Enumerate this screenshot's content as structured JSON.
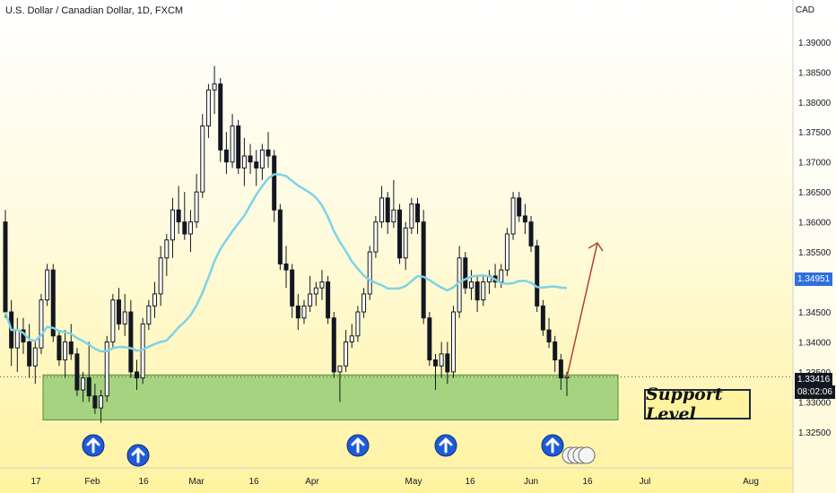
{
  "title": "U.S. Dollar / Canadian Dollar, 1D, FXCM",
  "unit": "CAD",
  "colors": {
    "bg_top": "#ffffff",
    "bg_bottom": "#fff3a0",
    "zone": "#a5d37f",
    "zone_border": "#5b8a3a",
    "ma": "#7ed3e6",
    "candle": "#131722",
    "arrow": "#1e5bd8",
    "ma_tag": "#2f6fe0",
    "price_tag": "#131722"
  },
  "y_ticks": [
    "1.32500",
    "1.33000",
    "1.33500",
    "1.34000",
    "1.34500",
    "1.35000",
    "1.35500",
    "1.36000",
    "1.36500",
    "1.37000",
    "1.37500",
    "1.38000",
    "1.38500",
    "1.39000"
  ],
  "x_ticks": [
    "17",
    "Feb",
    "16",
    "Mar",
    "16",
    "Apr",
    "May",
    "16",
    "Jun",
    "16",
    "Jul",
    "Aug"
  ],
  "ma_tag": "1.34951",
  "price_tag": "1.33416",
  "countdown": "08:02:06",
  "support_label": "Support Level",
  "chart_data": {
    "type": "candlestick",
    "title": "U.S. Dollar / Canadian Dollar, 1D, FXCM",
    "ylabel": "CAD",
    "ylim": [
      1.319,
      1.397
    ],
    "support_zone": [
      1.327,
      1.3345
    ],
    "ma_last": 1.34951,
    "last_price": 1.33416,
    "ohlc": [
      [
        1.36,
        1.362,
        1.344,
        1.345
      ],
      [
        1.345,
        1.347,
        1.336,
        1.339
      ],
      [
        1.339,
        1.344,
        1.335,
        1.342
      ],
      [
        1.342,
        1.344,
        1.338,
        1.34
      ],
      [
        1.34,
        1.343,
        1.334,
        1.336
      ],
      [
        1.336,
        1.34,
        1.333,
        1.339
      ],
      [
        1.339,
        1.348,
        1.338,
        1.347
      ],
      [
        1.347,
        1.353,
        1.346,
        1.352
      ],
      [
        1.352,
        1.353,
        1.34,
        1.341
      ],
      [
        1.341,
        1.342,
        1.336,
        1.337
      ],
      [
        1.337,
        1.342,
        1.334,
        1.34
      ],
      [
        1.34,
        1.343,
        1.337,
        1.338
      ],
      [
        1.338,
        1.339,
        1.331,
        1.332
      ],
      [
        1.332,
        1.335,
        1.33,
        1.334
      ],
      [
        1.334,
        1.34,
        1.33,
        1.331
      ],
      [
        1.331,
        1.333,
        1.328,
        1.329
      ],
      [
        1.329,
        1.332,
        1.3265,
        1.331
      ],
      [
        1.331,
        1.341,
        1.33,
        1.34
      ],
      [
        1.34,
        1.348,
        1.339,
        1.347
      ],
      [
        1.347,
        1.349,
        1.342,
        1.343
      ],
      [
        1.343,
        1.348,
        1.341,
        1.345
      ],
      [
        1.345,
        1.347,
        1.334,
        1.335
      ],
      [
        1.335,
        1.337,
        1.332,
        1.334
      ],
      [
        1.334,
        1.344,
        1.333,
        1.343
      ],
      [
        1.343,
        1.347,
        1.342,
        1.346
      ],
      [
        1.346,
        1.35,
        1.344,
        1.348
      ],
      [
        1.348,
        1.356,
        1.346,
        1.354
      ],
      [
        1.354,
        1.358,
        1.351,
        1.357
      ],
      [
        1.357,
        1.364,
        1.354,
        1.362
      ],
      [
        1.362,
        1.366,
        1.358,
        1.36
      ],
      [
        1.36,
        1.365,
        1.357,
        1.358
      ],
      [
        1.358,
        1.362,
        1.355,
        1.36
      ],
      [
        1.36,
        1.368,
        1.359,
        1.365
      ],
      [
        1.365,
        1.378,
        1.364,
        1.376
      ],
      [
        1.376,
        1.383,
        1.374,
        1.382
      ],
      [
        1.382,
        1.386,
        1.378,
        1.383
      ],
      [
        1.383,
        1.384,
        1.37,
        1.372
      ],
      [
        1.372,
        1.375,
        1.368,
        1.37
      ],
      [
        1.37,
        1.378,
        1.369,
        1.376
      ],
      [
        1.376,
        1.377,
        1.368,
        1.369
      ],
      [
        1.369,
        1.374,
        1.366,
        1.371
      ],
      [
        1.371,
        1.373,
        1.368,
        1.37
      ],
      [
        1.37,
        1.372,
        1.366,
        1.369
      ],
      [
        1.369,
        1.373,
        1.367,
        1.372
      ],
      [
        1.372,
        1.375,
        1.369,
        1.371
      ],
      [
        1.371,
        1.372,
        1.36,
        1.362
      ],
      [
        1.362,
        1.363,
        1.352,
        1.353
      ],
      [
        1.353,
        1.356,
        1.349,
        1.352
      ],
      [
        1.352,
        1.353,
        1.344,
        1.346
      ],
      [
        1.346,
        1.348,
        1.342,
        1.344
      ],
      [
        1.344,
        1.347,
        1.343,
        1.346
      ],
      [
        1.346,
        1.351,
        1.345,
        1.348
      ],
      [
        1.348,
        1.35,
        1.346,
        1.349
      ],
      [
        1.349,
        1.352,
        1.347,
        1.35
      ],
      [
        1.35,
        1.351,
        1.343,
        1.344
      ],
      [
        1.344,
        1.345,
        1.334,
        1.335
      ],
      [
        1.335,
        1.336,
        1.33,
        1.336
      ],
      [
        1.336,
        1.342,
        1.335,
        1.34
      ],
      [
        1.34,
        1.343,
        1.339,
        1.341
      ],
      [
        1.341,
        1.346,
        1.34,
        1.345
      ],
      [
        1.345,
        1.349,
        1.344,
        1.348
      ],
      [
        1.348,
        1.356,
        1.347,
        1.355
      ],
      [
        1.355,
        1.361,
        1.354,
        1.36
      ],
      [
        1.36,
        1.366,
        1.359,
        1.364
      ],
      [
        1.364,
        1.365,
        1.358,
        1.36
      ],
      [
        1.36,
        1.367,
        1.359,
        1.362
      ],
      [
        1.362,
        1.363,
        1.353,
        1.354
      ],
      [
        1.354,
        1.36,
        1.352,
        1.359
      ],
      [
        1.359,
        1.364,
        1.358,
        1.363
      ],
      [
        1.363,
        1.364,
        1.358,
        1.36
      ],
      [
        1.36,
        1.362,
        1.343,
        1.344
      ],
      [
        1.344,
        1.345,
        1.336,
        1.337
      ],
      [
        1.337,
        1.338,
        1.332,
        1.336
      ],
      [
        1.336,
        1.34,
        1.334,
        1.338
      ],
      [
        1.338,
        1.34,
        1.333,
        1.335
      ],
      [
        1.335,
        1.346,
        1.334,
        1.345
      ],
      [
        1.345,
        1.356,
        1.344,
        1.354
      ],
      [
        1.354,
        1.355,
        1.348,
        1.349
      ],
      [
        1.349,
        1.352,
        1.347,
        1.35
      ],
      [
        1.35,
        1.351,
        1.345,
        1.347
      ],
      [
        1.347,
        1.351,
        1.346,
        1.35
      ],
      [
        1.35,
        1.352,
        1.348,
        1.351
      ],
      [
        1.351,
        1.353,
        1.349,
        1.35
      ],
      [
        1.35,
        1.353,
        1.349,
        1.352
      ],
      [
        1.352,
        1.359,
        1.351,
        1.358
      ],
      [
        1.358,
        1.365,
        1.357,
        1.364
      ],
      [
        1.364,
        1.365,
        1.36,
        1.361
      ],
      [
        1.361,
        1.363,
        1.358,
        1.36
      ],
      [
        1.36,
        1.361,
        1.355,
        1.356
      ],
      [
        1.356,
        1.357,
        1.345,
        1.346
      ],
      [
        1.346,
        1.347,
        1.341,
        1.342
      ],
      [
        1.342,
        1.344,
        1.339,
        1.34
      ],
      [
        1.34,
        1.341,
        1.335,
        1.337
      ],
      [
        1.337,
        1.338,
        1.332,
        1.334
      ],
      [
        1.334,
        1.335,
        1.331,
        1.3342
      ]
    ]
  }
}
